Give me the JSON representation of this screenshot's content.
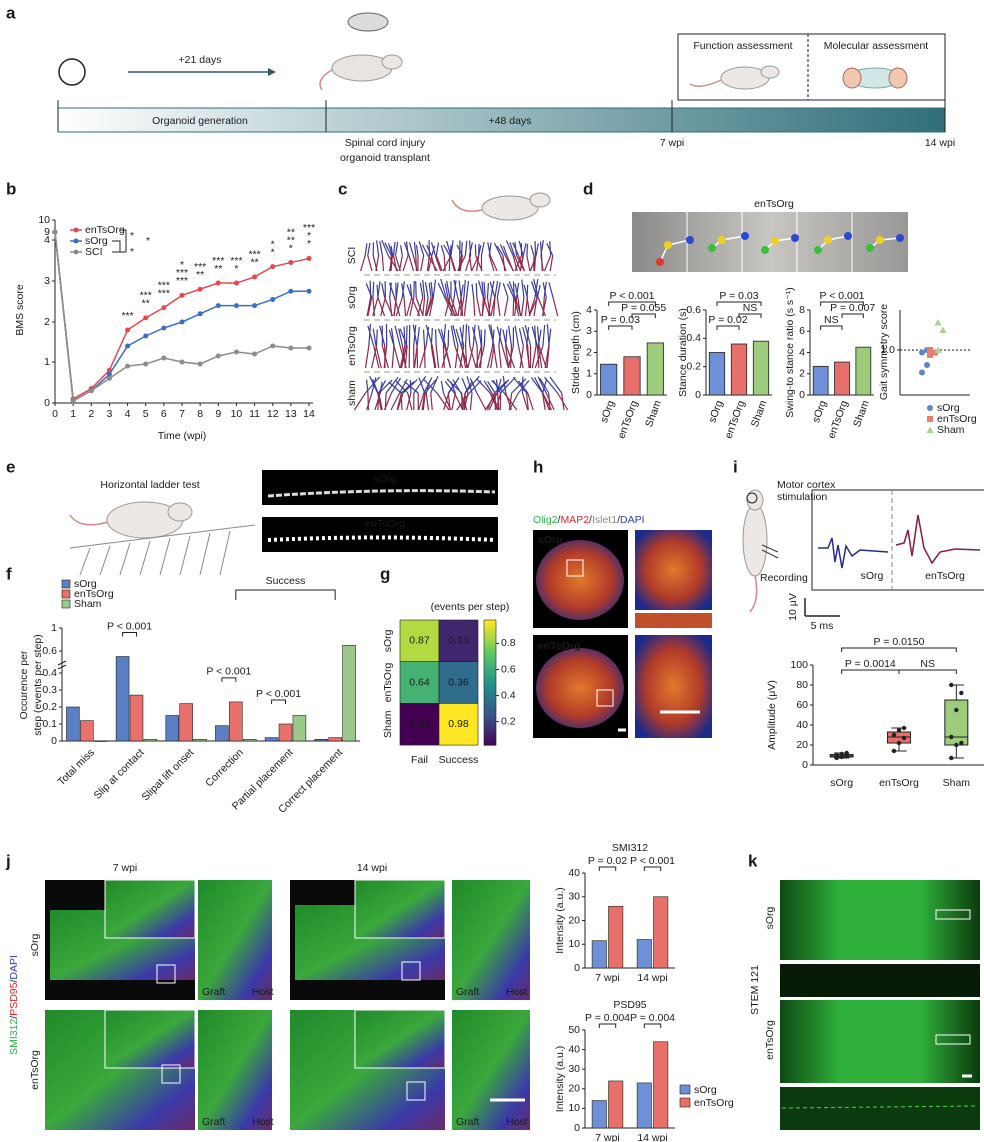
{
  "panel_a": {
    "letter": "a",
    "interval1": "+21 days",
    "interval2": "+48 days",
    "phase1": "Organoid generation",
    "event_line1": "Spinal cord injury",
    "event_line2": "organoid transplant",
    "tick_7": "7 wpi",
    "tick_14": "14 wpi",
    "function": "Function assessment",
    "molecular": "Molecular assessment"
  },
  "panel_b": {
    "letter": "b",
    "chart": {
      "type": "line",
      "xlabel": "Time (wpi)",
      "ylabel": "BMS score",
      "x": [
        0,
        1,
        2,
        3,
        4,
        5,
        6,
        7,
        8,
        9,
        10,
        11,
        12,
        13,
        14
      ],
      "xlim": [
        0,
        14
      ],
      "xticks": [
        0,
        1,
        2,
        3,
        4,
        5,
        6,
        7,
        8,
        9,
        10,
        11,
        12,
        13,
        14
      ],
      "ylim": [
        0,
        10
      ],
      "yticks": [
        0,
        1,
        2,
        3,
        4,
        9,
        10
      ],
      "series": [
        {
          "name": "enTsOrg",
          "color": "#e8474c",
          "values": [
            9,
            0.1,
            0.35,
            0.8,
            1.8,
            2.1,
            2.35,
            2.65,
            2.8,
            2.95,
            2.95,
            3.1,
            3.35,
            3.45,
            3.55
          ]
        },
        {
          "name": "sOrg",
          "color": "#3a6fc4",
          "values": [
            9,
            0.05,
            0.3,
            0.7,
            1.4,
            1.65,
            1.85,
            2.0,
            2.2,
            2.4,
            2.4,
            2.4,
            2.55,
            2.75,
            2.75
          ]
        },
        {
          "name": "SCI",
          "color": "#8c8c8c",
          "values": [
            9,
            0.05,
            0.3,
            0.6,
            0.9,
            0.95,
            1.1,
            1.0,
            0.95,
            1.15,
            1.25,
            1.2,
            1.4,
            1.35,
            1.35
          ]
        }
      ],
      "legend_marks": [
        {
          "text": "*",
          "color": "#e8474c"
        },
        {
          "text": "*",
          "color": "#e8821e"
        },
        {
          "text": "*",
          "color": "#2a3fb8"
        }
      ],
      "stars": [
        {
          "x": 4,
          "marks": [
            {
              "text": "***",
              "color": "#e8821e"
            }
          ]
        },
        {
          "x": 5,
          "marks": [
            {
              "text": "***",
              "color": "#e8821e"
            },
            {
              "text": "**",
              "color": "#2a3fb8"
            }
          ]
        },
        {
          "x": 6,
          "marks": [
            {
              "text": "***",
              "color": "#e8821e"
            },
            {
              "text": "***",
              "color": "#2a3fb8"
            }
          ]
        },
        {
          "x": 7,
          "marks": [
            {
              "text": "*",
              "color": "#e8821e"
            },
            {
              "text": "***",
              "color": "#e8821e"
            },
            {
              "text": "***",
              "color": "#2a3fb8"
            }
          ]
        },
        {
          "x": 8,
          "marks": [
            {
              "text": "***",
              "color": "#e8821e"
            },
            {
              "text": "**",
              "color": "#2a3fb8"
            }
          ]
        },
        {
          "x": 9,
          "marks": [
            {
              "text": "***",
              "color": "#e8821e"
            },
            {
              "text": "**",
              "color": "#2a3fb8"
            }
          ]
        },
        {
          "x": 10,
          "marks": [
            {
              "text": "***",
              "color": "#e8821e"
            },
            {
              "text": "*",
              "color": "#2a3fb8"
            }
          ]
        },
        {
          "x": 11,
          "marks": [
            {
              "text": "***",
              "color": "#e8821e"
            },
            {
              "text": "**",
              "color": "#2a3fb8"
            }
          ]
        },
        {
          "x": 12,
          "marks": [
            {
              "text": "*",
              "color": "#e8474c"
            },
            {
              "text": "*",
              "color": "#e8821e"
            }
          ]
        },
        {
          "x": 13,
          "marks": [
            {
              "text": "**",
              "color": "#e8474c"
            },
            {
              "text": "**",
              "color": "#e8821e"
            },
            {
              "text": "*",
              "color": "#2a3fb8"
            }
          ]
        },
        {
          "x": 14,
          "marks": [
            {
              "text": "***",
              "color": "#e8474c"
            },
            {
              "text": "*",
              "color": "#e8821e"
            },
            {
              "text": "*",
              "color": "#2a3fb8"
            }
          ]
        }
      ]
    }
  },
  "panel_c": {
    "letter": "c",
    "rows": [
      "SCI",
      "sOrg",
      "enTsOrg",
      "sham"
    ]
  },
  "panel_d": {
    "letter": "d",
    "title": "enTsOrg",
    "charts": [
      {
        "type": "bar",
        "ylabel": "Stride length (cm)",
        "categories": [
          "sOrg",
          "enTsOrg",
          "Sham"
        ],
        "colors": [
          "#6f8fd6",
          "#e8706a",
          "#9ccc7c"
        ],
        "values": [
          1.45,
          1.8,
          2.45
        ],
        "ylim": [
          0,
          4
        ],
        "yticks": [
          0,
          1,
          2,
          3,
          4
        ],
        "comparisons": [
          {
            "groups": [
              "sOrg",
              "Sham"
            ],
            "label": "P < 0.001"
          },
          {
            "groups": [
              "enTsOrg",
              "Sham"
            ],
            "label": "P = 0.055"
          },
          {
            "groups": [
              "sOrg",
              "enTsOrg"
            ],
            "label": "P = 0.03"
          }
        ]
      },
      {
        "type": "bar",
        "ylabel": "Stance duration (s)",
        "categories": [
          "sOrg",
          "enTsOrg",
          "Sham"
        ],
        "colors": [
          "#6f8fd6",
          "#e8706a",
          "#9ccc7c"
        ],
        "values": [
          0.3,
          0.36,
          0.38
        ],
        "ylim": [
          0,
          0.6
        ],
        "yticks": [
          0,
          0.2,
          0.4,
          0.6
        ],
        "comparisons": [
          {
            "groups": [
              "sOrg",
              "Sham"
            ],
            "label": "P = 0.03"
          },
          {
            "groups": [
              "enTsOrg",
              "Sham"
            ],
            "label": "NS"
          },
          {
            "groups": [
              "sOrg",
              "enTsOrg"
            ],
            "label": "P = 0.02"
          }
        ]
      },
      {
        "type": "bar",
        "ylabel": "Swing-to stance ratio (s s⁻¹)",
        "categories": [
          "sOrg",
          "enTsOrg",
          "Sham"
        ],
        "colors": [
          "#6f8fd6",
          "#e8706a",
          "#9ccc7c"
        ],
        "values": [
          2.7,
          3.1,
          4.5
        ],
        "ylim": [
          0,
          8
        ],
        "yticks": [
          0,
          2,
          4,
          6,
          8
        ],
        "comparisons": [
          {
            "groups": [
              "sOrg",
              "Sham"
            ],
            "label": "P < 0.001"
          },
          {
            "groups": [
              "enTsOrg",
              "Sham"
            ],
            "label": "P = 0.007"
          },
          {
            "groups": [
              "sOrg",
              "enTsOrg"
            ],
            "label": "NS"
          }
        ]
      },
      {
        "type": "scatter",
        "ylabel": "Gait symmetry score",
        "ylim": [
          0.1,
          1.8
        ],
        "yticks": [
          {
            "value": 1,
            "label": "1.0"
          }
        ],
        "series": [
          {
            "name": "sOrg",
            "color": "#5b86c9",
            "marker": "circle",
            "values": [
              0.55,
              0.7,
              0.95,
              1.0
            ]
          },
          {
            "name": "enTsOrg",
            "color": "#ee7b73",
            "marker": "square",
            "values": [
              0.9,
              0.95,
              1.0
            ]
          },
          {
            "name": "Sham",
            "color": "#a9d392",
            "marker": "triangle",
            "values": [
              1.0,
              1.4,
              1.55
            ]
          }
        ]
      }
    ]
  },
  "panel_e": {
    "letter": "e",
    "title": "Horizontal ladder test",
    "image_labels": [
      "sOrg",
      "enTsOrg"
    ]
  },
  "panel_f": {
    "letter": "f",
    "chart": {
      "type": "bar",
      "ylabel_line1": "Occurence per",
      "ylabel_line2": "step (events per step)",
      "categories": [
        "Total miss",
        "Slip at contact",
        "Slipat lift onset",
        "Correction",
        "Partial placement",
        "Correct placement"
      ],
      "ylim": [
        0,
        1
      ],
      "yticks": [
        0,
        0.1,
        0.2,
        0.3,
        0.4,
        0.6,
        1
      ],
      "series": [
        {
          "name": "sOrg",
          "color": "#5b7fc4",
          "values": [
            0.2,
            0.55,
            0.15,
            0.09,
            0.02,
            0.01
          ]
        },
        {
          "name": "enTsOrg",
          "color": "#e8716c",
          "values": [
            0.12,
            0.27,
            0.22,
            0.23,
            0.1,
            0.02
          ]
        },
        {
          "name": "Sham",
          "color": "#9cc88a",
          "values": [
            0.0,
            0.01,
            0.01,
            0.01,
            0.15,
            0.7
          ]
        }
      ],
      "bracket_label": "Success",
      "comparisons": [
        {
          "category": "Slip at contact",
          "label": "P < 0.001"
        },
        {
          "category": "Correction",
          "label": "P < 0.001"
        },
        {
          "category": "Partial placement",
          "label": "P < 0.001"
        }
      ]
    }
  },
  "panel_g": {
    "letter": "g",
    "chart": {
      "type": "heatmap",
      "colorbar_label": "(events per step)",
      "rows": [
        "sOrg",
        "enTsOrg",
        "Sham"
      ],
      "columns": [
        "Fail",
        "Success"
      ],
      "values": [
        [
          0.87,
          0.13
        ],
        [
          0.64,
          0.36
        ],
        [
          0.02,
          0.98
        ]
      ],
      "clim": [
        0.02,
        0.98
      ],
      "cticks": [
        0.2,
        0.4,
        0.6,
        0.8
      ]
    }
  },
  "panel_h": {
    "letter": "h",
    "stain": [
      {
        "text": "Olig2",
        "color": "#2db24a"
      },
      {
        "text": "/",
        "color": "#222222"
      },
      {
        "text": "MAP2",
        "color": "#e0262b"
      },
      {
        "text": "/",
        "color": "#222222"
      },
      {
        "text": "Islet1",
        "color": "#8a8a8a"
      },
      {
        "text": "/",
        "color": "#222222"
      },
      {
        "text": "DAPI",
        "color": "#2b3fc4"
      }
    ],
    "image_labels": [
      "sOrg",
      "enTsOrg"
    ]
  },
  "panel_i": {
    "letter": "i",
    "stim_line1": "Motor cortex",
    "stim_line2": "stimulation",
    "recording": "Recording",
    "trace_labels": [
      "sOrg",
      "enTsOrg"
    ],
    "scale_v": "10 μV",
    "scale_t": "5 ms",
    "chart": {
      "type": "box",
      "ylabel": "Amplitude (μV)",
      "categories": [
        "sOrg",
        "enTsOrg",
        "Sham"
      ],
      "colors": [
        "#6f8fd6",
        "#e8706a",
        "#9ccc7c"
      ],
      "ylim": [
        0,
        100
      ],
      "yticks": [
        0,
        20,
        40,
        60,
        80,
        100
      ],
      "boxes": [
        {
          "min": 7,
          "q1": 8,
          "median": 9,
          "q3": 10.5,
          "max": 12,
          "points": [
            7,
            8,
            9,
            10,
            11,
            12
          ]
        },
        {
          "min": 14,
          "q1": 22,
          "median": 28,
          "q3": 33,
          "max": 37,
          "points": [
            14,
            22,
            27,
            30,
            35,
            37
          ]
        },
        {
          "min": 7,
          "q1": 20,
          "median": 28,
          "q3": 65,
          "max": 80,
          "points": [
            7,
            20,
            22,
            28,
            55,
            72,
            80
          ]
        }
      ],
      "comparisons": [
        {
          "groups": [
            "sOrg",
            "Sham"
          ],
          "label": "P = 0.0150"
        },
        {
          "groups": [
            "sOrg",
            "enTsOrg"
          ],
          "label": "P = 0.0014"
        },
        {
          "groups": [
            "enTsOrg",
            "Sham"
          ],
          "label": "NS"
        }
      ]
    }
  },
  "panel_j": {
    "letter": "j",
    "time_labels": [
      "7 wpi",
      "14 wpi"
    ],
    "row_labels": [
      "sOrg",
      "enTsOrg"
    ],
    "stain": [
      {
        "text": "SMI312",
        "color": "#2db24a"
      },
      {
        "text": "/",
        "color": "#222222"
      },
      {
        "text": "PSD95",
        "color": "#e0262b"
      },
      {
        "text": "/",
        "color": "#222222"
      },
      {
        "text": "DAPI",
        "color": "#2b3fc4"
      }
    ],
    "inset_labels": [
      "Graft",
      "Host"
    ],
    "charts": [
      {
        "type": "bar",
        "title": "SMI312",
        "ylabel": "Intensity (a.u.)",
        "categories": [
          "7 wpi",
          "14 wpi"
        ],
        "ylim": [
          0,
          40
        ],
        "yticks": [
          0,
          10,
          20,
          30,
          40
        ],
        "series": [
          {
            "name": "sOrg",
            "color": "#6f8fd6",
            "values": [
              11.5,
              12
            ]
          },
          {
            "name": "enTsOrg",
            "color": "#e8706a",
            "values": [
              26,
              30
            ]
          }
        ],
        "comparisons": [
          {
            "category": "7 wpi",
            "label": "P = 0.02"
          },
          {
            "category": "14 wpi",
            "label": "P < 0.001"
          }
        ]
      },
      {
        "type": "bar",
        "title": "PSD95",
        "ylabel": "Intensity (a.u.)",
        "categories": [
          "7 wpi",
          "14 wpi"
        ],
        "ylim": [
          0,
          50
        ],
        "yticks": [
          0,
          10,
          20,
          30,
          40,
          50
        ],
        "series": [
          {
            "name": "sOrg",
            "color": "#6f8fd6",
            "values": [
              14,
              23
            ]
          },
          {
            "name": "enTsOrg",
            "color": "#e8706a",
            "values": [
              24,
              44
            ]
          }
        ],
        "comparisons": [
          {
            "category": "7 wpi",
            "label": "P = 0.004"
          },
          {
            "category": "14 wpi",
            "label": "P = 0.004"
          }
        ]
      }
    ]
  },
  "panel_k": {
    "letter": "k",
    "row_labels": [
      "sOrg",
      "enTsOrg"
    ],
    "stain": "STEM 121"
  }
}
